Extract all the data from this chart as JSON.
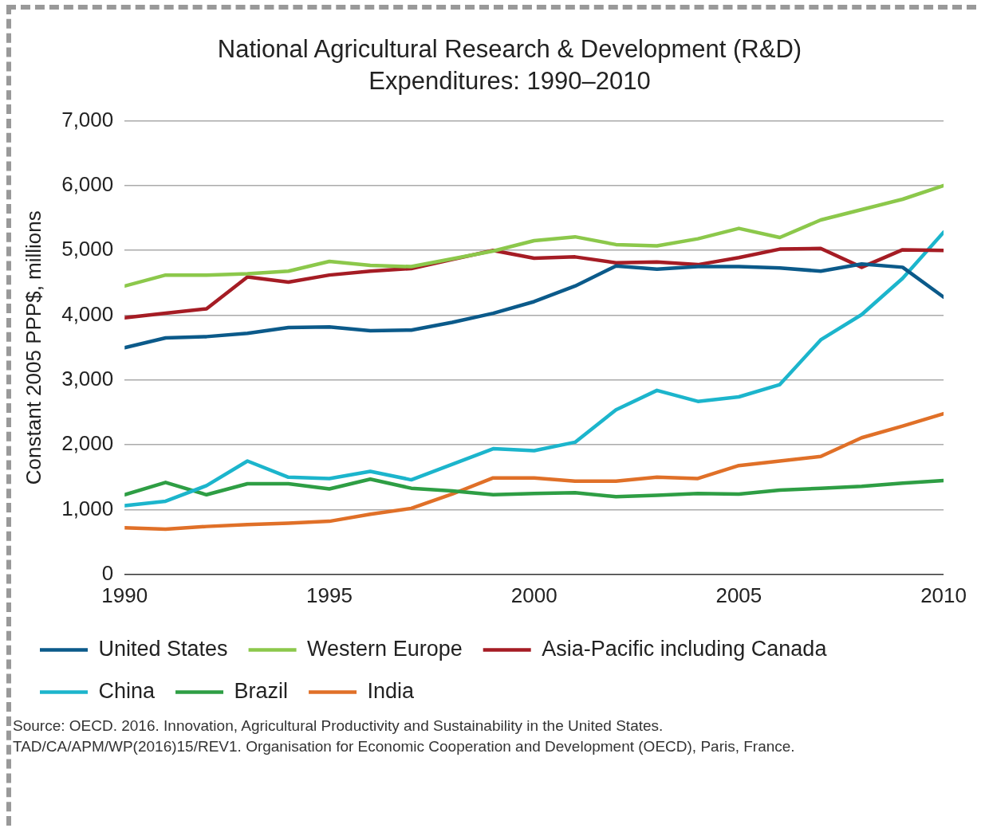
{
  "chart_data": {
    "type": "line",
    "title": "National Agricultural Research & Development (R&D) Expenditures: 1990–2010",
    "ylabel": "Constant 2005 PPP$, millions",
    "x": [
      1990,
      1991,
      1992,
      1993,
      1994,
      1995,
      1996,
      1997,
      1998,
      1999,
      2000,
      2001,
      2002,
      2003,
      2004,
      2005,
      2006,
      2007,
      2008,
      2009,
      2010
    ],
    "xlim": [
      1990,
      2010
    ],
    "xticks": [
      1990,
      1995,
      2000,
      2005,
      2010
    ],
    "ylim": [
      0,
      7000
    ],
    "yticks": [
      {
        "value": 0,
        "label": "0"
      },
      {
        "value": 1000,
        "label": "1,000"
      },
      {
        "value": 2000,
        "label": "2,000"
      },
      {
        "value": 3000,
        "label": "3,000"
      },
      {
        "value": 4000,
        "label": "4,000"
      },
      {
        "value": 5000,
        "label": "5,000"
      },
      {
        "value": 6000,
        "label": "6,000"
      },
      {
        "value": 7000,
        "label": "7,000"
      }
    ],
    "grid": "y",
    "legend": "bottom",
    "marker": "none",
    "line_style": "solid",
    "series": [
      {
        "name": "United States",
        "color": "#0b5a8a",
        "values": [
          3500,
          3650,
          3670,
          3720,
          3810,
          3820,
          3760,
          3770,
          3890,
          4030,
          4210,
          4450,
          4760,
          4710,
          4750,
          4750,
          4730,
          4680,
          4790,
          4740,
          4280
        ]
      },
      {
        "name": "Western Europe",
        "color": "#8cc84b",
        "values": [
          4450,
          4620,
          4620,
          4640,
          4680,
          4830,
          4770,
          4750,
          4870,
          4990,
          5150,
          5210,
          5090,
          5070,
          5180,
          5340,
          5200,
          5470,
          5630,
          5790,
          6000
        ]
      },
      {
        "name": "Asia-Pacific including Canada",
        "color": "#a51c24",
        "values": [
          3960,
          4030,
          4100,
          4590,
          4510,
          4620,
          4680,
          4720,
          4860,
          5000,
          4880,
          4900,
          4810,
          4820,
          4780,
          4890,
          5020,
          5030,
          4740,
          5010,
          5000
        ]
      },
      {
        "name": "China",
        "color": "#1cb5cc",
        "values": [
          1060,
          1130,
          1370,
          1750,
          1500,
          1480,
          1590,
          1460,
          1700,
          1940,
          1910,
          2040,
          2540,
          2840,
          2670,
          2740,
          2930,
          3620,
          4010,
          4570,
          5280
        ]
      },
      {
        "name": "Brazil",
        "color": "#2e9e44",
        "values": [
          1230,
          1420,
          1230,
          1400,
          1400,
          1320,
          1470,
          1330,
          1290,
          1230,
          1250,
          1260,
          1200,
          1220,
          1250,
          1240,
          1300,
          1330,
          1360,
          1410,
          1450
        ]
      },
      {
        "name": "India",
        "color": "#e07028",
        "values": [
          720,
          700,
          740,
          770,
          790,
          820,
          930,
          1020,
          1240,
          1490,
          1490,
          1440,
          1440,
          1500,
          1480,
          1680,
          1750,
          1820,
          2110,
          2290,
          2480
        ]
      }
    ],
    "annotations": [
      "Source: OECD. 2016. Innovation, Agricultural Productivity and Sustainability in the United States. TAD/CA/APM/WP(2016)15/REV1. Organisation for Economic Cooperation and Development (OECD), Paris, France."
    ]
  }
}
